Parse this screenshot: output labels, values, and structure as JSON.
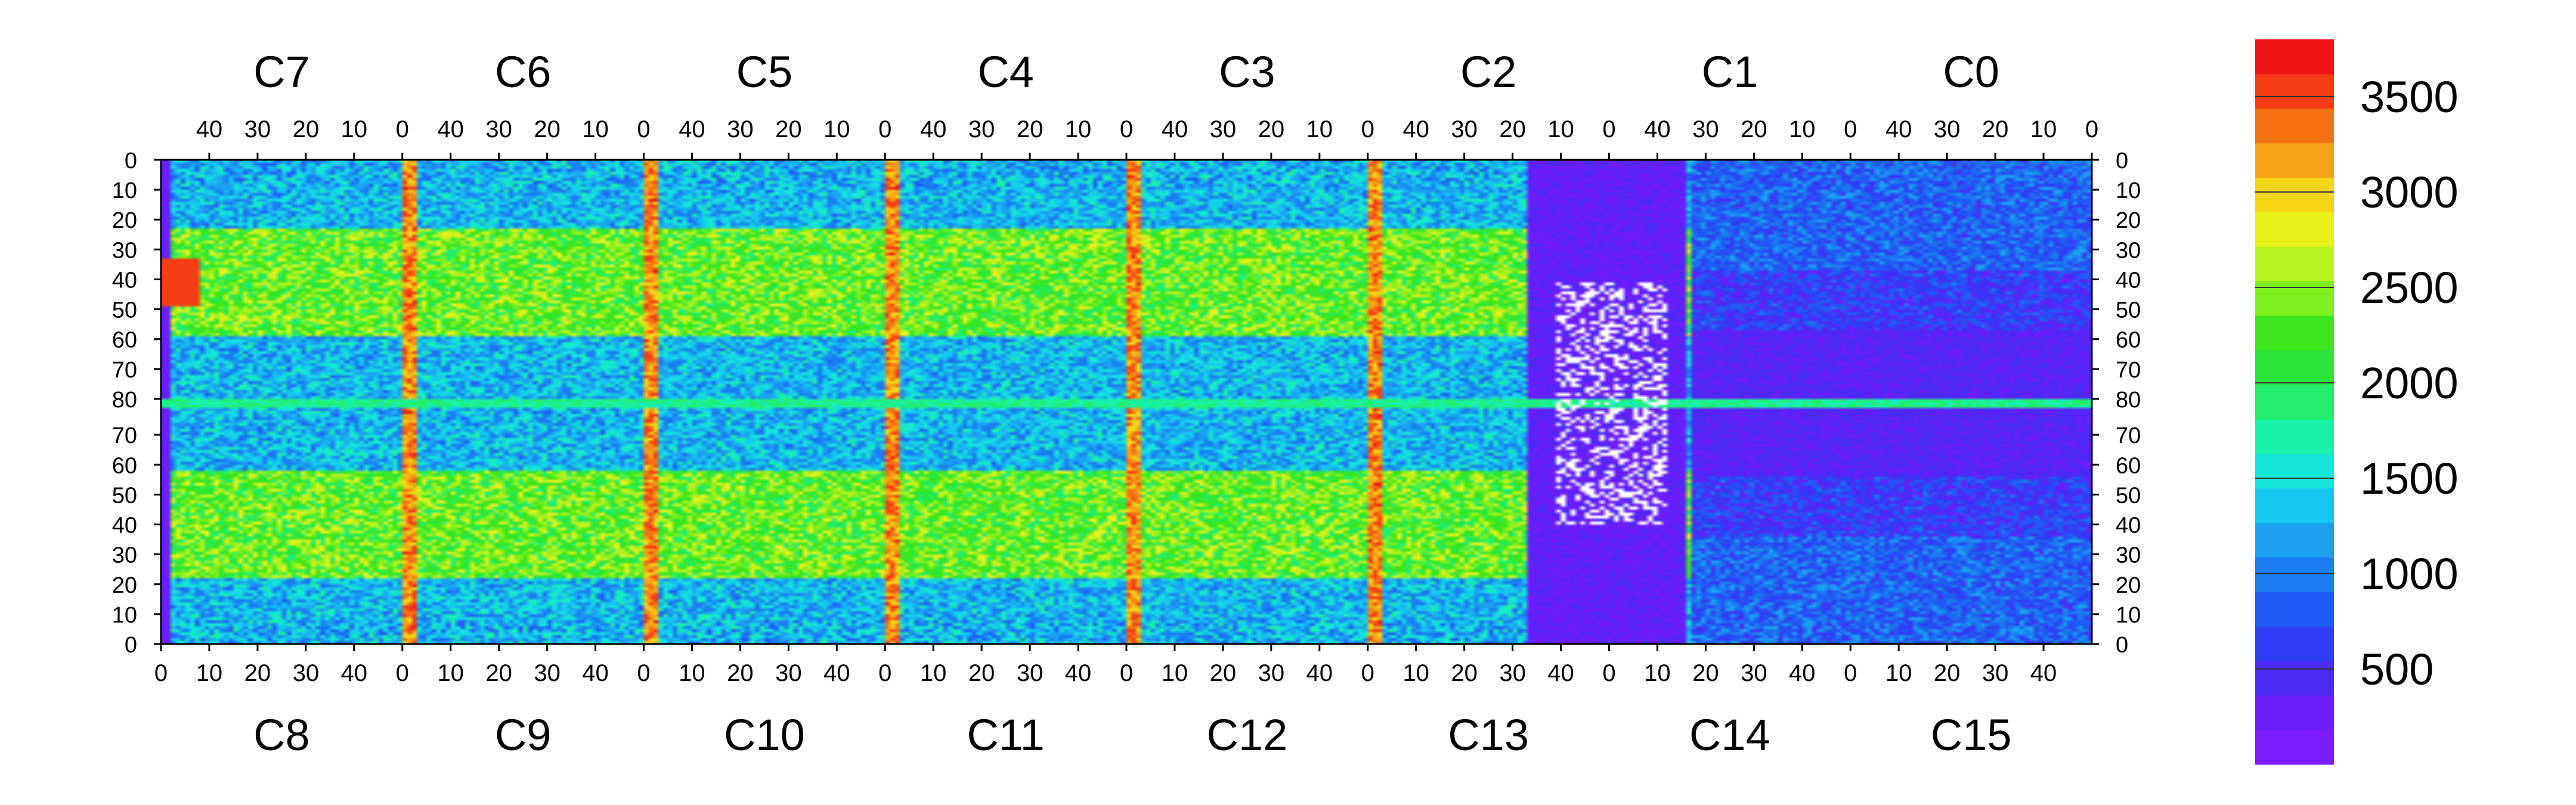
{
  "chart_data": {
    "type": "heatmap",
    "title": "",
    "xlabel": "",
    "ylabel": "",
    "colormap": [
      "#7a1cff",
      "#6b1dfb",
      "#4c2af5",
      "#2f3ef5",
      "#1f5cf5",
      "#1a7df0",
      "#1aa2f0",
      "#14c8f0",
      "#14e6d8",
      "#19f2a8",
      "#22ee6e",
      "#2be63a",
      "#3ee61c",
      "#7ef01e",
      "#b8f21e",
      "#e6f21a",
      "#f5d614",
      "#f5a514",
      "#f57214",
      "#f53c14",
      "#f01414"
    ],
    "colorbar": {
      "range": [
        0,
        3800
      ],
      "ticks": [
        500,
        1000,
        1500,
        2000,
        2500,
        3000,
        3500
      ],
      "tick_labels": [
        "500",
        "1000",
        "1500",
        "2000",
        "2500",
        "3000",
        "3500"
      ]
    },
    "top_chips": [
      "C7",
      "C6",
      "C5",
      "C4",
      "C3",
      "C2",
      "C1",
      "C0"
    ],
    "bottom_chips": [
      "C8",
      "C9",
      "C10",
      "C11",
      "C12",
      "C13",
      "C14",
      "C15"
    ],
    "top_x_ticks": [
      "40",
      "30",
      "20",
      "10",
      "0"
    ],
    "bottom_x_ticks": [
      "0",
      "10",
      "20",
      "30",
      "40"
    ],
    "y_ticks_top_half": [
      "0",
      "10",
      "20",
      "30",
      "40",
      "50",
      "60",
      "70",
      "80"
    ],
    "y_ticks_bottom_half": [
      "70",
      "60",
      "50",
      "40",
      "30",
      "20",
      "10",
      "0"
    ]
  }
}
